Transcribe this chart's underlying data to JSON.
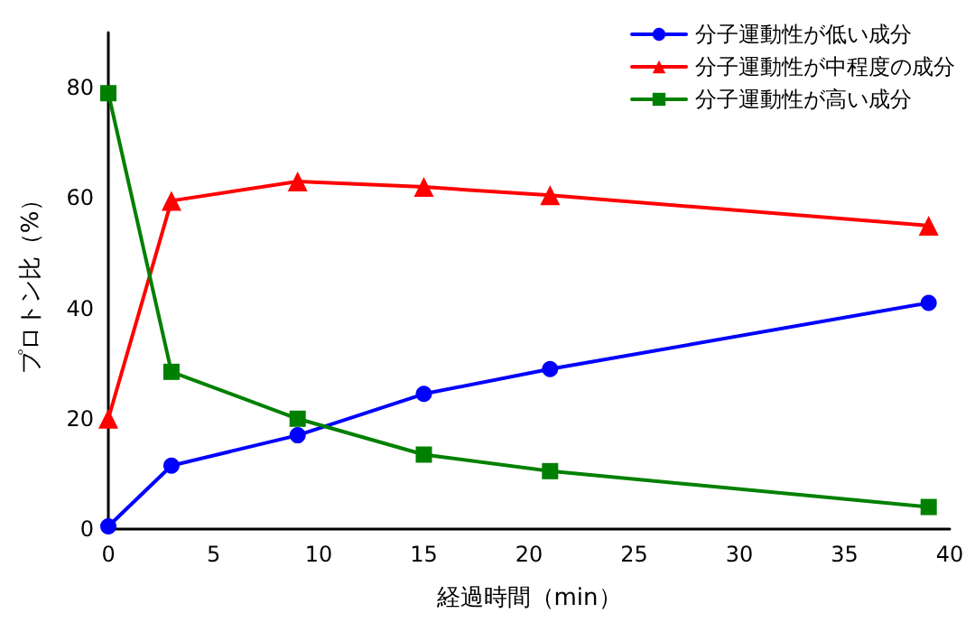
{
  "chart_data": {
    "type": "line",
    "xlabel": "経過時間（min）",
    "ylabel": "プロトン比（%）",
    "x": [
      0,
      3,
      9,
      15,
      21,
      39
    ],
    "series": [
      {
        "name": "分子運動性が低い成分",
        "color": "#0000ff",
        "marker": "circle",
        "values": [
          0.5,
          11.5,
          17,
          24.5,
          29,
          41
        ]
      },
      {
        "name": "分子運動性が中程度の成分",
        "color": "#ff0000",
        "marker": "triangle",
        "values": [
          20,
          59.5,
          63,
          62,
          60.5,
          55
        ]
      },
      {
        "name": "分子運動性が高い成分",
        "color": "#008000",
        "marker": "square",
        "values": [
          79,
          28.5,
          20,
          13.5,
          10.5,
          4
        ]
      }
    ],
    "xlim": [
      0,
      40
    ],
    "xticks": [
      0,
      5,
      10,
      15,
      20,
      25,
      30,
      35,
      40
    ],
    "ylim": [
      0,
      90
    ],
    "yticks": [
      0,
      20,
      40,
      60,
      80
    ],
    "grid": false,
    "legend": "top right",
    "line_style": "solid"
  }
}
